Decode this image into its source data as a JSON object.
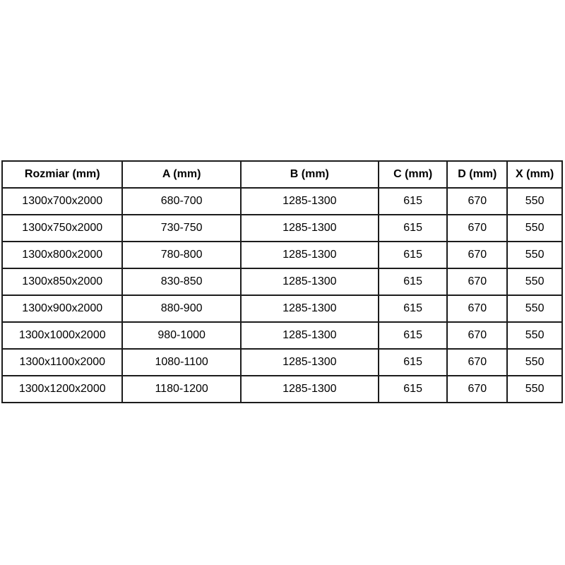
{
  "page": {
    "background_color": "#ffffff",
    "border_color": "#1c1c1c",
    "text_color": "#000000"
  },
  "table": {
    "columns": [
      "Rozmiar (mm)",
      "A (mm)",
      "B (mm)",
      "C (mm)",
      "D (mm)",
      "X (mm)"
    ],
    "rows": [
      [
        "1300x700x2000",
        "680-700",
        "1285-1300",
        "615",
        "670",
        "550"
      ],
      [
        "1300x750x2000",
        "730-750",
        "1285-1300",
        "615",
        "670",
        "550"
      ],
      [
        "1300x800x2000",
        "780-800",
        "1285-1300",
        "615",
        "670",
        "550"
      ],
      [
        "1300x850x2000",
        "830-850",
        "1285-1300",
        "615",
        "670",
        "550"
      ],
      [
        "1300x900x2000",
        "880-900",
        "1285-1300",
        "615",
        "670",
        "550"
      ],
      [
        "1300x1000x2000",
        "980-1000",
        "1285-1300",
        "615",
        "670",
        "550"
      ],
      [
        "1300x1100x2000",
        "1080-1100",
        "1285-1300",
        "615",
        "670",
        "550"
      ],
      [
        "1300x1200x2000",
        "1180-1200",
        "1285-1300",
        "615",
        "670",
        "550"
      ]
    ]
  },
  "chart_data": {
    "type": "table",
    "title": "",
    "categories": [
      "Rozmiar (mm)",
      "A (mm)",
      "B (mm)",
      "C (mm)",
      "D (mm)",
      "X (mm)"
    ],
    "values": [
      [
        "1300x700x2000",
        "680-700",
        "1285-1300",
        615,
        670,
        550
      ],
      [
        "1300x750x2000",
        "730-750",
        "1285-1300",
        615,
        670,
        550
      ],
      [
        "1300x800x2000",
        "780-800",
        "1285-1300",
        615,
        670,
        550
      ],
      [
        "1300x850x2000",
        "830-850",
        "1285-1300",
        615,
        670,
        550
      ],
      [
        "1300x900x2000",
        "880-900",
        "1285-1300",
        615,
        670,
        550
      ],
      [
        "1300x1000x2000",
        "980-1000",
        "1285-1300",
        615,
        670,
        550
      ],
      [
        "1300x1100x2000",
        "1080-1100",
        "1285-1300",
        615,
        670,
        550
      ],
      [
        "1300x1200x2000",
        "1180-1200",
        "1285-1300",
        615,
        670,
        550
      ]
    ]
  }
}
